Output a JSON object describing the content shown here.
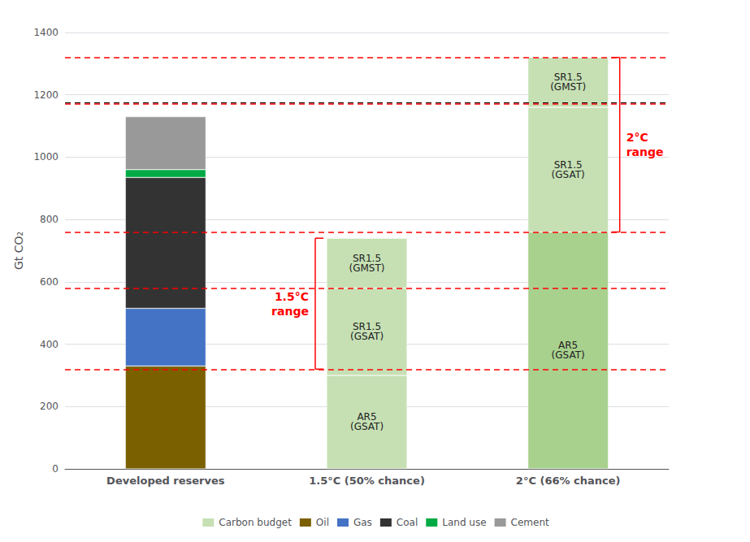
{
  "chart_data": {
    "type": "bar",
    "stacked": true,
    "categories": [
      "Developed reserves",
      "1.5°C (50% chance)",
      "2°C (66% chance)"
    ],
    "ylabel": "Gt CO₂",
    "ylim": [
      0,
      1400
    ],
    "yticks": [
      0,
      200,
      400,
      600,
      800,
      1000,
      1200,
      1400
    ],
    "grid": true,
    "legend": "bottom",
    "series": [
      {
        "name": "Carbon budget",
        "color": "#c6e0b4",
        "colors": [
          null,
          "#c6e0b4",
          "#a9d18e"
        ],
        "values": [
          null,
          300,
          760
        ],
        "segment_labels": [
          null,
          "AR5\n(GSAT)",
          "AR5\n(GSAT)"
        ]
      },
      {
        "name": "Carbon budget",
        "color": "#c6e0b4",
        "values": [
          null,
          280,
          400
        ],
        "segment_labels": [
          null,
          "SR1.5\n(GSAT)",
          "SR1.5\n(GSAT)"
        ]
      },
      {
        "name": "Carbon budget",
        "color": "#c6e0b4",
        "values": [
          null,
          160,
          160
        ],
        "segment_labels": [
          null,
          "SR1.5\n(GMST)",
          "SR1.5\n(GMST)"
        ]
      },
      {
        "name": "Oil",
        "color": "#7b6000",
        "values": [
          330,
          null,
          null
        ]
      },
      {
        "name": "Gas",
        "color": "#4472c4",
        "values": [
          185,
          null,
          null
        ]
      },
      {
        "name": "Coal",
        "color": "#333333",
        "values": [
          420,
          null,
          null
        ]
      },
      {
        "name": "Land use",
        "color": "#00aa44",
        "values": [
          25,
          null,
          null
        ]
      },
      {
        "name": "Cement",
        "color": "#999999",
        "values": [
          170,
          null,
          null
        ]
      }
    ],
    "reference_lines": [
      {
        "y": 320,
        "color": "red",
        "line_style": "dashed"
      },
      {
        "y": 580,
        "color": "red",
        "line_style": "dashed"
      },
      {
        "y": 760,
        "color": "red",
        "line_style": "dashed"
      },
      {
        "y": 1170,
        "color": "red",
        "line_style": "dashed"
      },
      {
        "y": 1320,
        "color": "red",
        "line_style": "dashed"
      },
      {
        "y": 1175,
        "color": "black",
        "line_style": "dashed"
      }
    ],
    "brackets": [
      {
        "label": "1.5°C\nrange",
        "category": "1.5°C (50% chance)",
        "y1": 320,
        "y2": 740,
        "color": "red"
      },
      {
        "label": "2°C\nrange",
        "category": "2°C (66% chance)",
        "y1": 760,
        "y2": 1320,
        "color": "red"
      }
    ]
  }
}
